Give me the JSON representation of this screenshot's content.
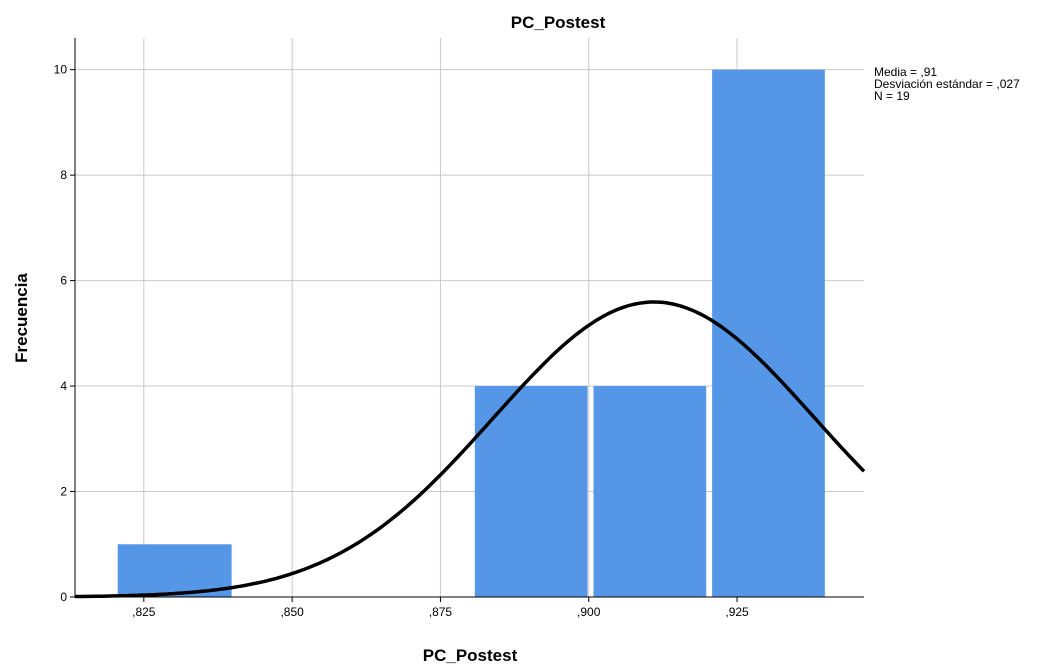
{
  "chart_data": {
    "type": "bar",
    "title": "PC_Postest",
    "xlabel": "PC_Postest",
    "ylabel": "Frecuencia",
    "xlim": [
      0.8134,
      0.9464
    ],
    "ylim": [
      0,
      10.6
    ],
    "x_ticks": [
      {
        "value": 0.825,
        "label": ",825"
      },
      {
        "value": 0.85,
        "label": ",850"
      },
      {
        "value": 0.875,
        "label": ",875"
      },
      {
        "value": 0.9,
        "label": ",900"
      },
      {
        "value": 0.925,
        "label": ",925"
      }
    ],
    "y_ticks": [
      {
        "value": 0,
        "label": "0"
      },
      {
        "value": 2,
        "label": "2"
      },
      {
        "value": 4,
        "label": "4"
      },
      {
        "value": 6,
        "label": "6"
      },
      {
        "value": 8,
        "label": "8"
      },
      {
        "value": 10,
        "label": "10"
      }
    ],
    "bins": [
      {
        "x0": 0.8206,
        "x1": 0.8398,
        "count": 1
      },
      {
        "x0": 0.8808,
        "x1": 0.8998,
        "count": 4
      },
      {
        "x0": 0.9008,
        "x1": 0.9198,
        "count": 4
      },
      {
        "x0": 0.9208,
        "x1": 0.9398,
        "count": 10
      }
    ],
    "normal_curve": {
      "mean": 0.911,
      "sd": 0.0271,
      "n": 19,
      "bin_width": 0.02
    },
    "grid": true,
    "bar_color": "#5596e6",
    "curve_color": "#000000",
    "stats": [
      "Media = ,91",
      "Desviación estándar = ,027",
      "N = 19"
    ]
  }
}
